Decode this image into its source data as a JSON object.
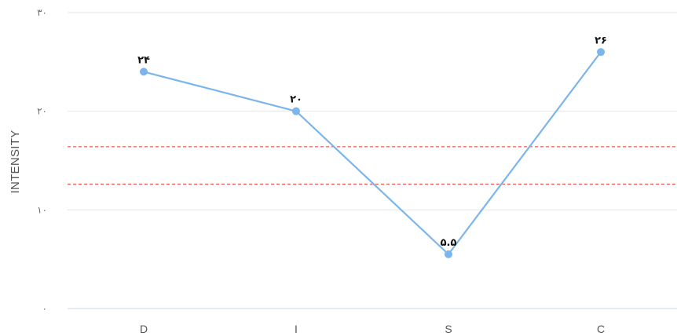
{
  "chart_data": {
    "type": "line",
    "categories": [
      "D",
      "I",
      "S",
      "C"
    ],
    "series": [
      {
        "values": [
          24,
          20,
          5.5,
          26
        ],
        "data_labels": [
          "۲۴",
          "۲۰",
          "۵.۵",
          "۲۶"
        ],
        "color": "#7cb5ec"
      }
    ],
    "ylabel": "INTENSITY",
    "xlabel": "",
    "ylim": [
      0,
      30
    ],
    "y_ticks": [
      0,
      10,
      20,
      30
    ],
    "y_tick_labels": [
      "۰",
      "۱۰",
      "۲۰",
      "۳۰"
    ],
    "reference_lines": [
      {
        "value": 16.4,
        "color": "#e8332f",
        "style": "dashed"
      },
      {
        "value": 12.6,
        "color": "#e8332f",
        "style": "dashed"
      }
    ],
    "grid": true,
    "gridline_color": "#e6e6e6",
    "axis_color": "#c8d7e8",
    "legend": "none"
  }
}
